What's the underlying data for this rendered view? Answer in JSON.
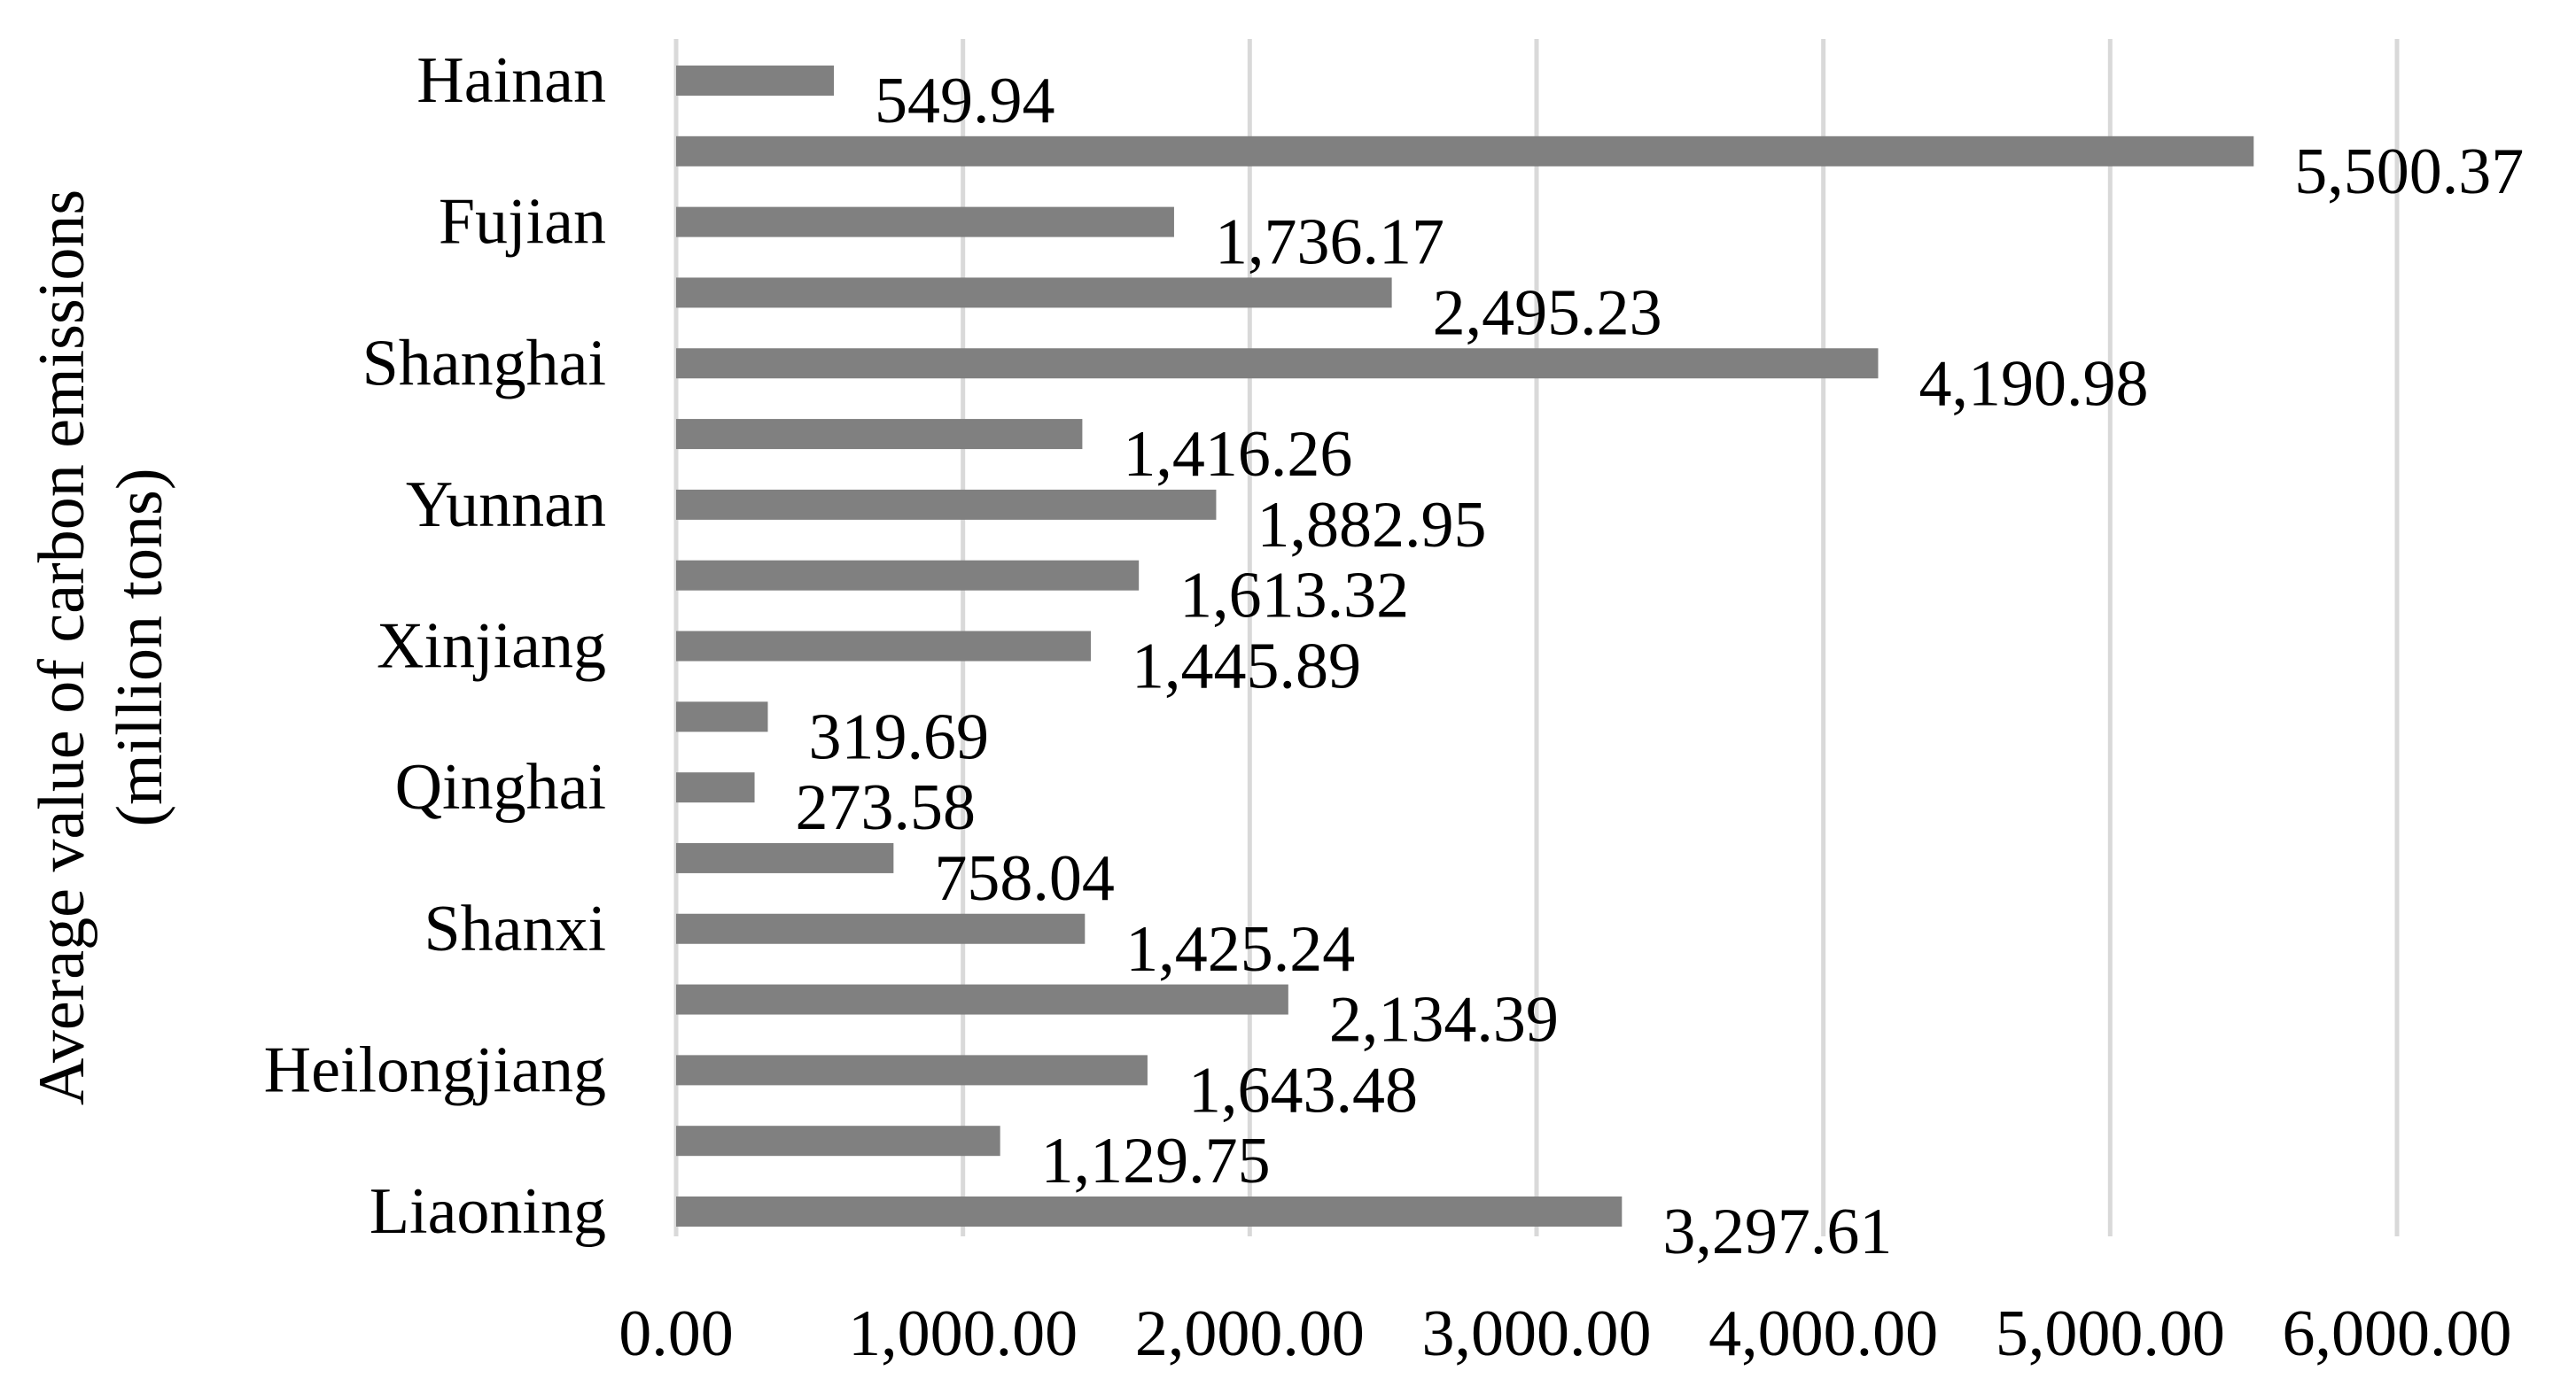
{
  "chart_data": {
    "type": "bar",
    "orientation": "horizontal",
    "title": "",
    "ylabel_lines": [
      "Average value of carbon emissions",
      "(million tons)"
    ],
    "xlabel": "",
    "xlim": [
      0,
      6000
    ],
    "xticks": [
      0,
      1000,
      2000,
      3000,
      4000,
      5000,
      6000
    ],
    "xtick_labels": [
      "0.00",
      "1,000.00",
      "2,000.00",
      "3,000.00",
      "4,000.00",
      "5,000.00",
      "6,000.00"
    ],
    "grid": "vertical",
    "bar_color": "#808080",
    "bars": [
      {
        "category": "Hainan",
        "value": 549.94,
        "value_label": "549.94",
        "show_category": true
      },
      {
        "category": "",
        "value": 5500.37,
        "value_label": "5,500.37",
        "show_category": false
      },
      {
        "category": "Fujian",
        "value": 1736.17,
        "value_label": "1,736.17",
        "show_category": true
      },
      {
        "category": "",
        "value": 2495.23,
        "value_label": "2,495.23",
        "show_category": false
      },
      {
        "category": "Shanghai",
        "value": 4190.98,
        "value_label": "4,190.98",
        "show_category": true
      },
      {
        "category": "",
        "value": 1416.26,
        "value_label": "1,416.26",
        "show_category": false
      },
      {
        "category": "Yunnan",
        "value": 1882.95,
        "value_label": "1,882.95",
        "show_category": true
      },
      {
        "category": "",
        "value": 1613.32,
        "value_label": "1,613.32",
        "show_category": false
      },
      {
        "category": "Xinjiang",
        "value": 1445.89,
        "value_label": "1,445.89",
        "show_category": true
      },
      {
        "category": "",
        "value": 319.69,
        "value_label": "319.69",
        "show_category": false
      },
      {
        "category": "Qinghai",
        "value": 273.58,
        "value_label": "273.58",
        "show_category": true
      },
      {
        "category": "",
        "value": 758.04,
        "value_label": "758.04",
        "show_category": false
      },
      {
        "category": "Shanxi",
        "value": 1425.24,
        "value_label": "1,425.24",
        "show_category": true
      },
      {
        "category": "",
        "value": 2134.39,
        "value_label": "2,134.39",
        "show_category": false
      },
      {
        "category": "Heilongjiang",
        "value": 1643.48,
        "value_label": "1,643.48",
        "show_category": true
      },
      {
        "category": "",
        "value": 1129.75,
        "value_label": "1,129.75",
        "show_category": false
      },
      {
        "category": "Liaoning",
        "value": 3297.61,
        "value_label": "3,297.61",
        "show_category": true
      }
    ]
  }
}
